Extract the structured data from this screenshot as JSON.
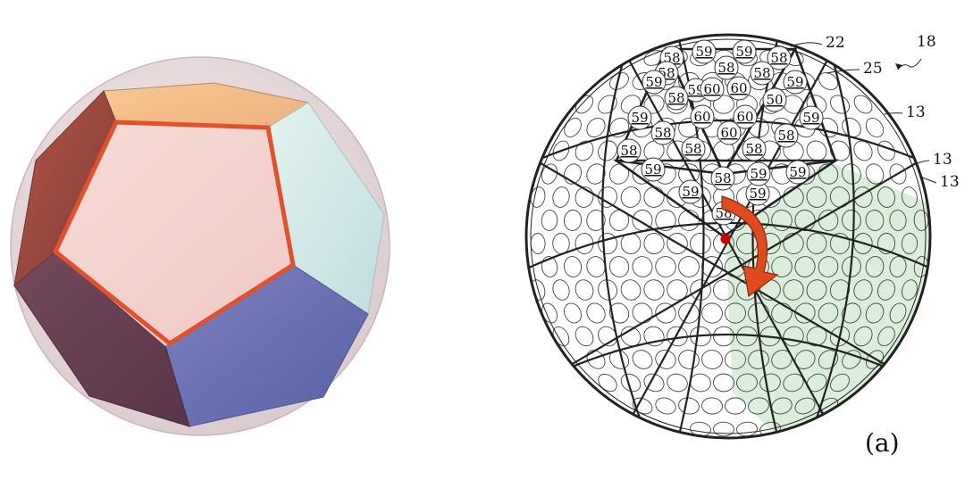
{
  "left_panel": {
    "colors": {
      "sphere": "#e7dcdc",
      "front_face": "#f3d2cf",
      "outline": "#e2512b",
      "top_face": "#f4bf8c",
      "right_face": "#d6ebe7",
      "bottom_right_face": "#6a72b2",
      "bottom_left_face": "#6a4256",
      "left_face": "#9b4a3c"
    }
  },
  "right_panel": {
    "panel_label": "(a)",
    "reference_numerals": [
      "22",
      "18",
      "25",
      "13",
      "13",
      "13"
    ],
    "dimple_numbers": [
      "58",
      "59",
      "59",
      "58",
      "58",
      "58",
      "58",
      "59",
      "59",
      "59",
      "58",
      "60",
      "60",
      "50",
      "59",
      "60",
      "60",
      "59",
      "58",
      "60",
      "58",
      "58",
      "58",
      "58",
      "59",
      "59",
      "59",
      "59",
      "58",
      "59",
      "58"
    ],
    "colors": {
      "line": "#222222",
      "highlight": "#cfe8cf",
      "arrow": "#e04a1e",
      "dot": "#d10000"
    }
  }
}
